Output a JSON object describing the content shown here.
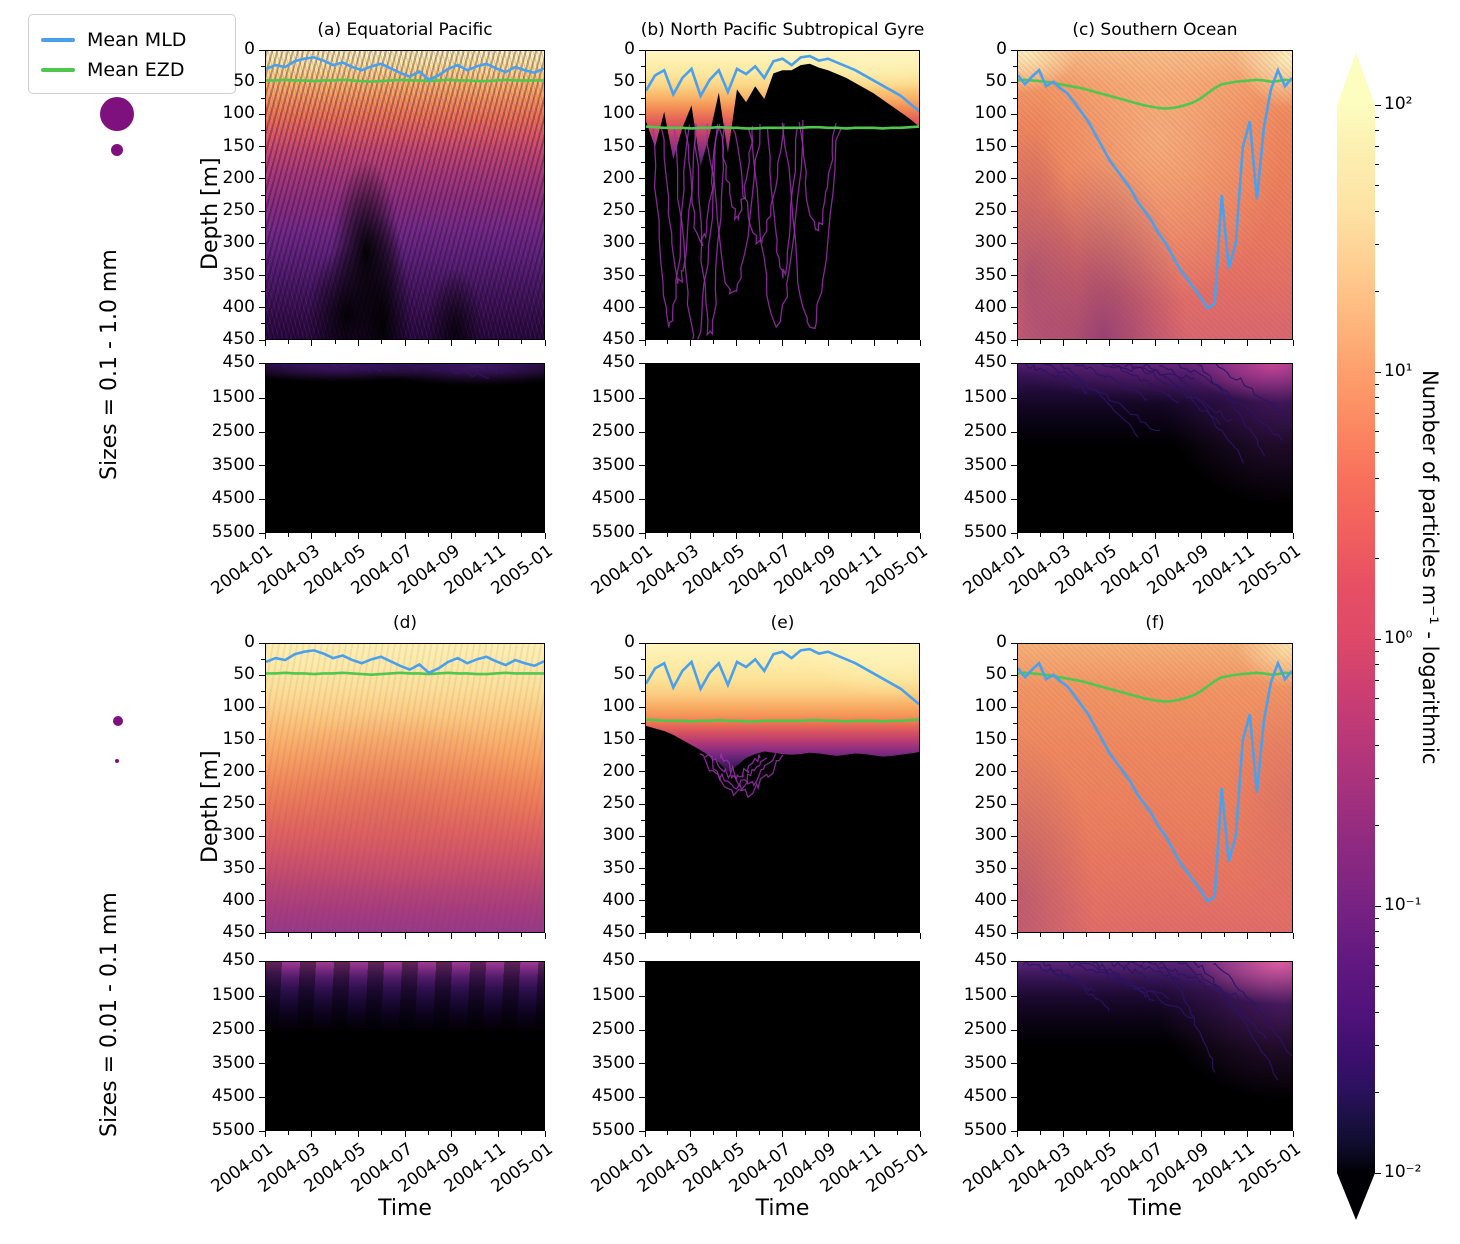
{
  "legend": {
    "items": [
      {
        "label": "Mean MLD",
        "color": "#4aa0ec"
      },
      {
        "label": "Mean EZD",
        "color": "#4fc74f"
      }
    ]
  },
  "size_dot_color": "#7e117e",
  "rows": [
    {
      "size_label": "Sizes = 0.1 - 1.0 mm"
    },
    {
      "size_label": "Sizes = 0.01 - 0.1 mm"
    }
  ],
  "axis": {
    "xlabel": "Time",
    "ylabel": "Depth [m]",
    "xtick_labels": [
      "2004-01",
      "2004-03",
      "2004-05",
      "2004-07",
      "2004-09",
      "2004-11",
      "2005-01"
    ],
    "upper_ytick_labels": [
      "0",
      "50",
      "100",
      "150",
      "200",
      "250",
      "300",
      "350",
      "400",
      "450"
    ],
    "deep_ytick_labels": [
      "450",
      "1500",
      "2500",
      "3500",
      "4500",
      "5500"
    ]
  },
  "colorbar": {
    "label": "Number of particles m⁻¹ - logarithmic",
    "tick_labels": [
      "10²",
      "10¹",
      "10⁰",
      "10⁻¹",
      "10⁻²"
    ],
    "scale": "log10",
    "colormap": "magma",
    "value_range": [
      0.01,
      100
    ]
  },
  "chart_data": {
    "type": "heatmap",
    "title": "Vertical particle concentration vs time, by region and size class",
    "x_range": [
      "2004-01",
      "2005-01"
    ],
    "upper_depth_range_m": [
      0,
      450
    ],
    "deep_depth_range_m": [
      450,
      5500
    ],
    "panel_titles": {
      "a": "(a) Equatorial Pacific",
      "b": "(b) North Pacific Subtropical Gyre",
      "c": "(c) Southern Ocean",
      "d": "(d)",
      "e": "(e)",
      "f": "(f)"
    },
    "panel_grid": [
      [
        "a",
        "b",
        "c"
      ],
      [
        "d",
        "e",
        "f"
      ]
    ],
    "series": {
      "mean_mld_depth_m": {
        "col1": [
          28,
          22,
          25,
          16,
          12,
          10,
          15,
          22,
          18,
          25,
          30,
          24,
          20,
          27,
          34,
          40,
          32,
          45,
          38,
          28,
          22,
          30,
          24,
          20,
          27,
          33,
          25,
          30,
          34,
          27
        ],
        "col2": [
          62,
          38,
          30,
          68,
          42,
          28,
          70,
          45,
          30,
          64,
          28,
          36,
          24,
          42,
          16,
          12,
          22,
          10,
          8,
          15,
          12,
          18,
          24,
          30,
          38,
          46,
          54,
          62,
          70,
          82,
          94
        ],
        "col3": [
          38,
          52,
          40,
          30,
          55,
          48,
          58,
          66,
          80,
          95,
          110,
          130,
          150,
          170,
          185,
          200,
          215,
          235,
          250,
          265,
          285,
          300,
          320,
          340,
          355,
          370,
          385,
          402,
          395,
          225,
          340,
          300,
          150,
          110,
          232,
          120,
          60,
          30,
          55,
          42
        ]
      },
      "mean_ezd_depth_m": {
        "col1": [
          46,
          46,
          45,
          46,
          46,
          47,
          46,
          46,
          45,
          46,
          47,
          48,
          47,
          46,
          45,
          46,
          46,
          47,
          46,
          45,
          46,
          46,
          47,
          47,
          46,
          45,
          46,
          46,
          46,
          46
        ],
        "col2": [
          118,
          119,
          120,
          120,
          120,
          121,
          120,
          120,
          119,
          120,
          120,
          121,
          121,
          120,
          120,
          120,
          120,
          120,
          119,
          119,
          120,
          120,
          121,
          120,
          120,
          120,
          121,
          120,
          120,
          119,
          118
        ],
        "col3": [
          46,
          45,
          46,
          47,
          48,
          50,
          52,
          54,
          56,
          58,
          61,
          64,
          67,
          70,
          73,
          76,
          79,
          82,
          85,
          87,
          89,
          90,
          89,
          87,
          84,
          80,
          74,
          66,
          58,
          52,
          50,
          48,
          47,
          46,
          45,
          46,
          48,
          47,
          45,
          46
        ]
      },
      "particle_void_boundary_m": {
        "col2_upper_row1": [
          110,
          150,
          95,
          170,
          120,
          85,
          180,
          130,
          65,
          160,
          60,
          80,
          55,
          75,
          35,
          30,
          30,
          22,
          20,
          26,
          30,
          36,
          42,
          50,
          58,
          66,
          76,
          86,
          96,
          106,
          118
        ],
        "col2_upper_row2": [
          128,
          132,
          136,
          142,
          150,
          158,
          166,
          175,
          185,
          200,
          190,
          178,
          172,
          168,
          170,
          172,
          173,
          172,
          170,
          171,
          173,
          175,
          173,
          171,
          172,
          174,
          176,
          175,
          173,
          171,
          169
        ]
      }
    }
  }
}
